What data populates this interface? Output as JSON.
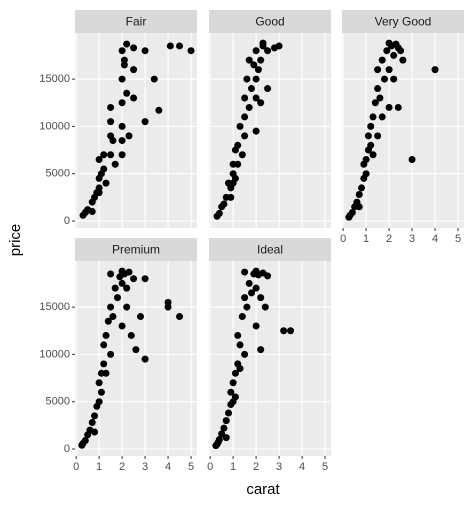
{
  "chart_data": {
    "type": "scatter",
    "x_label": "carat",
    "y_label": "price",
    "color": "#000000",
    "grid": true,
    "xlim": [
      -0.05,
      5.26
    ],
    "ylim": [
      -740,
      19870
    ],
    "xticks": [
      0,
      1,
      2,
      3,
      4,
      5
    ],
    "yticks": [
      0,
      5000,
      10000,
      15000
    ],
    "facets": [
      {
        "name": "Fair",
        "x": [
          0.3,
          0.5,
          0.7,
          0.8,
          0.9,
          1.0,
          1.0,
          1.1,
          1.2,
          1.0,
          1.5,
          1.5,
          1.5,
          1.5,
          1.6,
          1.7,
          2.0,
          2.0,
          2.0,
          2.0,
          2.0,
          2.1,
          2.2,
          2.3,
          2.5,
          2.5,
          2.5,
          3.0,
          3.0,
          3.4,
          3.6,
          4.1,
          4.5,
          5.0,
          1.3,
          0.7,
          0.4,
          1.0,
          1.2,
          2.0,
          2.1,
          2.2
        ],
        "y": [
          600,
          1200,
          2000,
          2500,
          3000,
          3500,
          4500,
          5000,
          5500,
          6500,
          7000,
          9000,
          10500,
          12000,
          8500,
          6000,
          7000,
          10000,
          12500,
          15000,
          18000,
          17000,
          13500,
          9000,
          13000,
          16000,
          18300,
          10500,
          18000,
          15000,
          11700,
          18500,
          18500,
          18000,
          4000,
          1000,
          900,
          3000,
          7000,
          8500,
          16500,
          18700
        ]
      },
      {
        "name": "Good",
        "x": [
          0.3,
          0.4,
          0.5,
          0.7,
          0.9,
          1.0,
          1.0,
          1.1,
          1.2,
          1.2,
          1.5,
          1.5,
          1.5,
          1.6,
          1.7,
          1.7,
          2.0,
          2.0,
          2.0,
          2.1,
          2.2,
          2.3,
          2.5,
          2.5,
          2.8,
          3.0,
          0.8,
          1.0,
          1.3,
          1.4,
          2.2,
          0.6,
          0.9,
          1.1,
          1.8,
          1.9,
          2.0,
          2.3
        ],
        "y": [
          500,
          800,
          1500,
          2500,
          3500,
          5000,
          6000,
          7500,
          8000,
          6000,
          9000,
          11000,
          13000,
          15000,
          12000,
          17000,
          13000,
          15000,
          18000,
          16000,
          17000,
          18500,
          18000,
          14000,
          18300,
          18500,
          4000,
          4000,
          10000,
          7000,
          12500,
          1800,
          2500,
          4500,
          14000,
          16500,
          9500,
          18800
        ]
      },
      {
        "name": "Very Good",
        "x": [
          0.25,
          0.3,
          0.4,
          0.5,
          0.6,
          0.7,
          0.8,
          0.9,
          1.0,
          1.0,
          1.1,
          1.2,
          1.2,
          1.3,
          1.4,
          1.5,
          1.5,
          1.5,
          1.6,
          1.7,
          1.8,
          1.9,
          2.0,
          2.0,
          2.0,
          2.1,
          2.2,
          2.3,
          2.4,
          2.5,
          2.6,
          2.4,
          3.0,
          4.0,
          0.9,
          1.1,
          1.3,
          1.7,
          2.2,
          0.7
        ],
        "y": [
          400,
          600,
          900,
          1500,
          2000,
          2800,
          3500,
          4500,
          5000,
          6500,
          7500,
          8000,
          10000,
          11000,
          12500,
          9000,
          14000,
          16000,
          13000,
          17000,
          15000,
          18000,
          12000,
          16000,
          18800,
          18500,
          17500,
          18700,
          12000,
          18000,
          17000,
          18300,
          6500,
          16000,
          6000,
          9000,
          7000,
          11000,
          15000,
          1500
        ]
      },
      {
        "name": "Premium",
        "x": [
          0.25,
          0.3,
          0.4,
          0.5,
          0.6,
          0.7,
          0.8,
          0.9,
          1.0,
          1.0,
          1.1,
          1.2,
          1.2,
          1.3,
          1.4,
          1.5,
          1.5,
          1.5,
          1.6,
          1.7,
          1.8,
          1.9,
          2.0,
          2.0,
          2.0,
          2.1,
          2.2,
          2.3,
          2.5,
          2.6,
          2.8,
          3.0,
          3.0,
          4.0,
          4.0,
          4.5,
          1.1,
          1.3,
          2.2,
          2.4,
          0.8
        ],
        "y": [
          400,
          600,
          900,
          1500,
          2000,
          2800,
          3500,
          4500,
          5000,
          7000,
          8000,
          9000,
          11000,
          12000,
          13500,
          10000,
          15000,
          18500,
          14000,
          17000,
          16000,
          18200,
          13000,
          17500,
          18800,
          18500,
          17000,
          18700,
          18000,
          10500,
          14000,
          9500,
          18000,
          15000,
          15500,
          14000,
          6000,
          8000,
          15000,
          12000,
          1800
        ]
      },
      {
        "name": "Ideal",
        "x": [
          0.25,
          0.3,
          0.35,
          0.4,
          0.5,
          0.6,
          0.7,
          0.8,
          0.9,
          1.0,
          1.0,
          1.1,
          1.2,
          1.2,
          1.3,
          1.4,
          1.5,
          1.5,
          1.5,
          1.6,
          1.7,
          1.8,
          1.9,
          2.0,
          2.0,
          2.0,
          2.1,
          2.2,
          2.3,
          2.4,
          2.5,
          3.2,
          3.5,
          0.9,
          1.1,
          1.3,
          2.2,
          0.7
        ],
        "y": [
          350,
          500,
          700,
          1000,
          1600,
          2200,
          3000,
          3800,
          4700,
          5000,
          7000,
          8000,
          9000,
          12000,
          11000,
          14000,
          10000,
          16000,
          18700,
          15000,
          17500,
          16500,
          18500,
          13000,
          17000,
          18800,
          18400,
          16000,
          18600,
          15000,
          18300,
          12500,
          12500,
          6000,
          5500,
          8500,
          10500,
          1200
        ]
      }
    ]
  }
}
